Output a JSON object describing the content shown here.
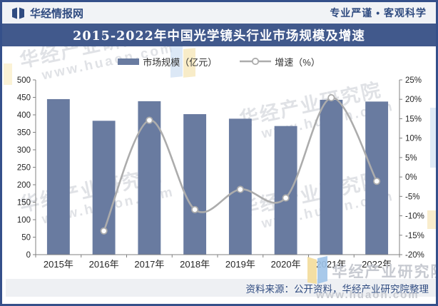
{
  "header": {
    "brand": "华经情报网",
    "slogan": "专业严谨 • 客观科学"
  },
  "title": "2015-2022年中国光学镜头行业市场规模及增速",
  "legend": {
    "market_size": "市场规模（亿元）",
    "growth": "增速（%）"
  },
  "source_note": "资料来源：公开资料，华经产业研究院整理",
  "watermark": {
    "name": "华经产业研究院",
    "url": "www.huaon.com"
  },
  "colors": {
    "frame": "#35508A",
    "banner": "#41598C",
    "header_bg": "#F1F3F6",
    "navy_text": "#2F4B80",
    "bar": "#697BA0",
    "line": "#ACACAC",
    "marker_fill": "#FFFFFF",
    "axis": "#808080",
    "tick_text": "#262626",
    "source_bg": "#EEF0F3",
    "watermark_gray": "#C7CAD1",
    "folder_blue": "#BFD5EE",
    "folder_yellow": "#F3DC9A"
  },
  "chart_data": {
    "type": "bar",
    "combo": "bar+line",
    "title": "2015-2022年中国光学镜头行业市场规模及增速",
    "categories": [
      "2015年",
      "2016年",
      "2017年",
      "2018年",
      "2019年",
      "2020年",
      "2021年",
      "2022年"
    ],
    "series": [
      {
        "name": "市场规模（亿元）",
        "type": "bar",
        "axis": "left",
        "values": [
          445,
          383,
          439,
          402,
          389,
          368,
          443,
          438
        ]
      },
      {
        "name": "增速（%）",
        "type": "line",
        "axis": "right",
        "values": [
          null,
          -13.9,
          14.6,
          -8.4,
          -3.2,
          -5.4,
          20.4,
          -1.1
        ]
      }
    ],
    "left_axis": {
      "min": 0,
      "max": 500,
      "step": 50,
      "tick_labels": [
        "500",
        "450",
        "400",
        "350",
        "300",
        "250",
        "200",
        "150",
        "100",
        "50",
        "0"
      ]
    },
    "right_axis": {
      "min": -20,
      "max": 25,
      "step": 5,
      "suffix": "%",
      "tick_labels": [
        "25%",
        "20%",
        "15%",
        "10%",
        "5%",
        "0%",
        "-5%",
        "-10%",
        "-15%",
        "-20%"
      ]
    },
    "grid": false,
    "legend_position": "top"
  }
}
